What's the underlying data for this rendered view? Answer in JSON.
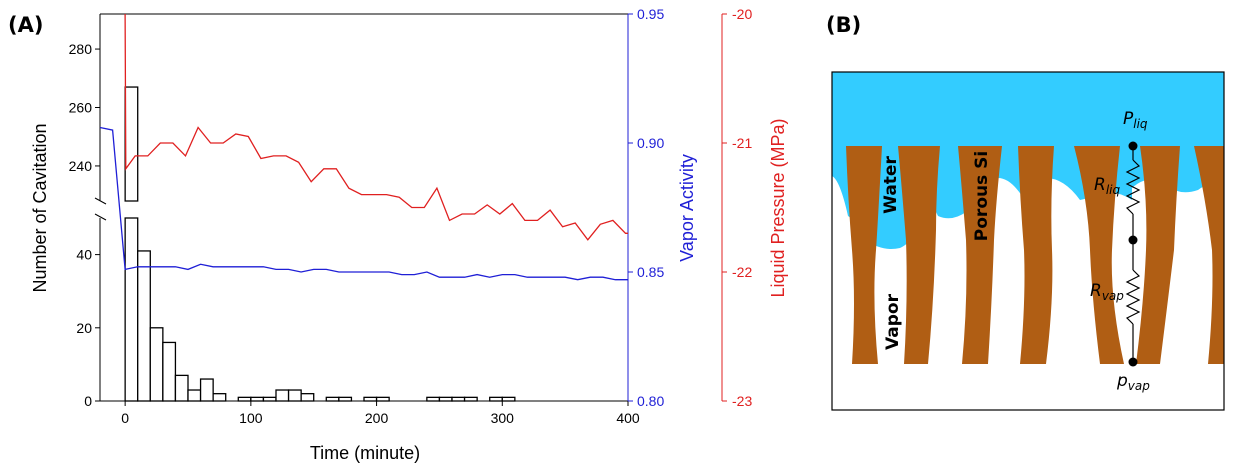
{
  "panels": {
    "a_label": "(A)",
    "b_label": "(B)"
  },
  "chart_data": {
    "type": "bar",
    "x_axis": {
      "label": "Time (minute)",
      "ticks": [
        0,
        100,
        200,
        300,
        400
      ],
      "range": [
        -20,
        400
      ]
    },
    "left_axis": {
      "label": "Number of Cavitation",
      "broken": true,
      "lower_range": [
        0,
        50
      ],
      "lower_ticks": [
        0,
        20,
        40
      ],
      "upper_range": [
        228,
        292
      ],
      "upper_ticks": [
        240,
        260,
        280
      ]
    },
    "right_axis_1": {
      "label": "Vapor Activity",
      "color": "#1f1fd6",
      "range": [
        0.8,
        0.95
      ],
      "ticks": [
        "0.80",
        "0.85",
        "0.90",
        "0.95"
      ]
    },
    "right_axis_2": {
      "label": "Liquid Pressure (MPa)",
      "color": "#e02020",
      "range": [
        -23,
        -20
      ],
      "ticks": [
        "-23",
        "-22",
        "-21",
        "-20"
      ]
    },
    "bars": {
      "name": "Number of Cavitation",
      "x": [
        5,
        15,
        25,
        35,
        45,
        55,
        65,
        75,
        95,
        105,
        115,
        125,
        135,
        145,
        165,
        175,
        195,
        205,
        245,
        255,
        265,
        275,
        295,
        305
      ],
      "values": [
        267,
        41,
        20,
        16,
        7,
        3,
        6,
        2,
        1,
        1,
        1,
        3,
        3,
        2,
        1,
        1,
        1,
        1,
        1,
        1,
        1,
        1,
        1,
        1
      ]
    },
    "series": [
      {
        "name": "Vapor Activity",
        "axis": "right_axis_1",
        "color": "#1f1fd6",
        "x": [
          -20,
          -10,
          0,
          10,
          20,
          30,
          40,
          50,
          60,
          70,
          80,
          90,
          100,
          110,
          120,
          130,
          140,
          150,
          160,
          170,
          180,
          190,
          200,
          210,
          220,
          230,
          240,
          250,
          260,
          270,
          280,
          290,
          300,
          310,
          320,
          330,
          340,
          350,
          360,
          370,
          380,
          390,
          400
        ],
        "y": [
          0.906,
          0.905,
          0.851,
          0.852,
          0.852,
          0.852,
          0.852,
          0.851,
          0.853,
          0.852,
          0.852,
          0.852,
          0.852,
          0.852,
          0.851,
          0.851,
          0.85,
          0.851,
          0.851,
          0.85,
          0.85,
          0.85,
          0.85,
          0.85,
          0.849,
          0.849,
          0.85,
          0.848,
          0.848,
          0.848,
          0.849,
          0.848,
          0.849,
          0.849,
          0.848,
          0.848,
          0.848,
          0.848,
          0.847,
          0.848,
          0.848,
          0.847,
          0.847
        ]
      },
      {
        "name": "Liquid Pressure (MPa)",
        "axis": "right_axis_2",
        "color": "#e02020",
        "x": [
          0,
          0.5,
          8,
          18,
          28,
          38,
          48,
          58,
          68,
          78,
          88,
          98,
          108,
          118,
          128,
          138,
          148,
          158,
          168,
          178,
          188,
          198,
          208,
          218,
          228,
          238,
          248,
          258,
          268,
          278,
          288,
          298,
          308,
          318,
          328,
          338,
          348,
          358,
          368,
          378,
          388,
          398,
          400
        ],
        "y": [
          -20.0,
          -21.2,
          -21.1,
          -21.1,
          -21.0,
          -21.0,
          -21.1,
          -20.88,
          -21.0,
          -21.0,
          -20.93,
          -20.95,
          -21.12,
          -21.1,
          -21.1,
          -21.15,
          -21.3,
          -21.2,
          -21.2,
          -21.35,
          -21.4,
          -21.4,
          -21.4,
          -21.42,
          -21.5,
          -21.5,
          -21.35,
          -21.6,
          -21.55,
          -21.55,
          -21.48,
          -21.55,
          -21.47,
          -21.6,
          -21.6,
          -21.52,
          -21.65,
          -21.62,
          -21.75,
          -21.63,
          -21.6,
          -21.7,
          -21.7
        ]
      }
    ]
  },
  "diagram": {
    "water_label": "Water",
    "porous_label": "Porous Si",
    "vapor_label": "Vapor",
    "p_liq": {
      "main": "P",
      "sub": "liq"
    },
    "r_liq": {
      "main": "R",
      "sub": "liq"
    },
    "r_vap": {
      "main": "R",
      "sub": "vap"
    },
    "p_vap": {
      "main": "p",
      "sub": "vap"
    },
    "colors": {
      "water": "#33ccff",
      "silicon": "#b05e14",
      "vapor": "#ffffff"
    }
  }
}
